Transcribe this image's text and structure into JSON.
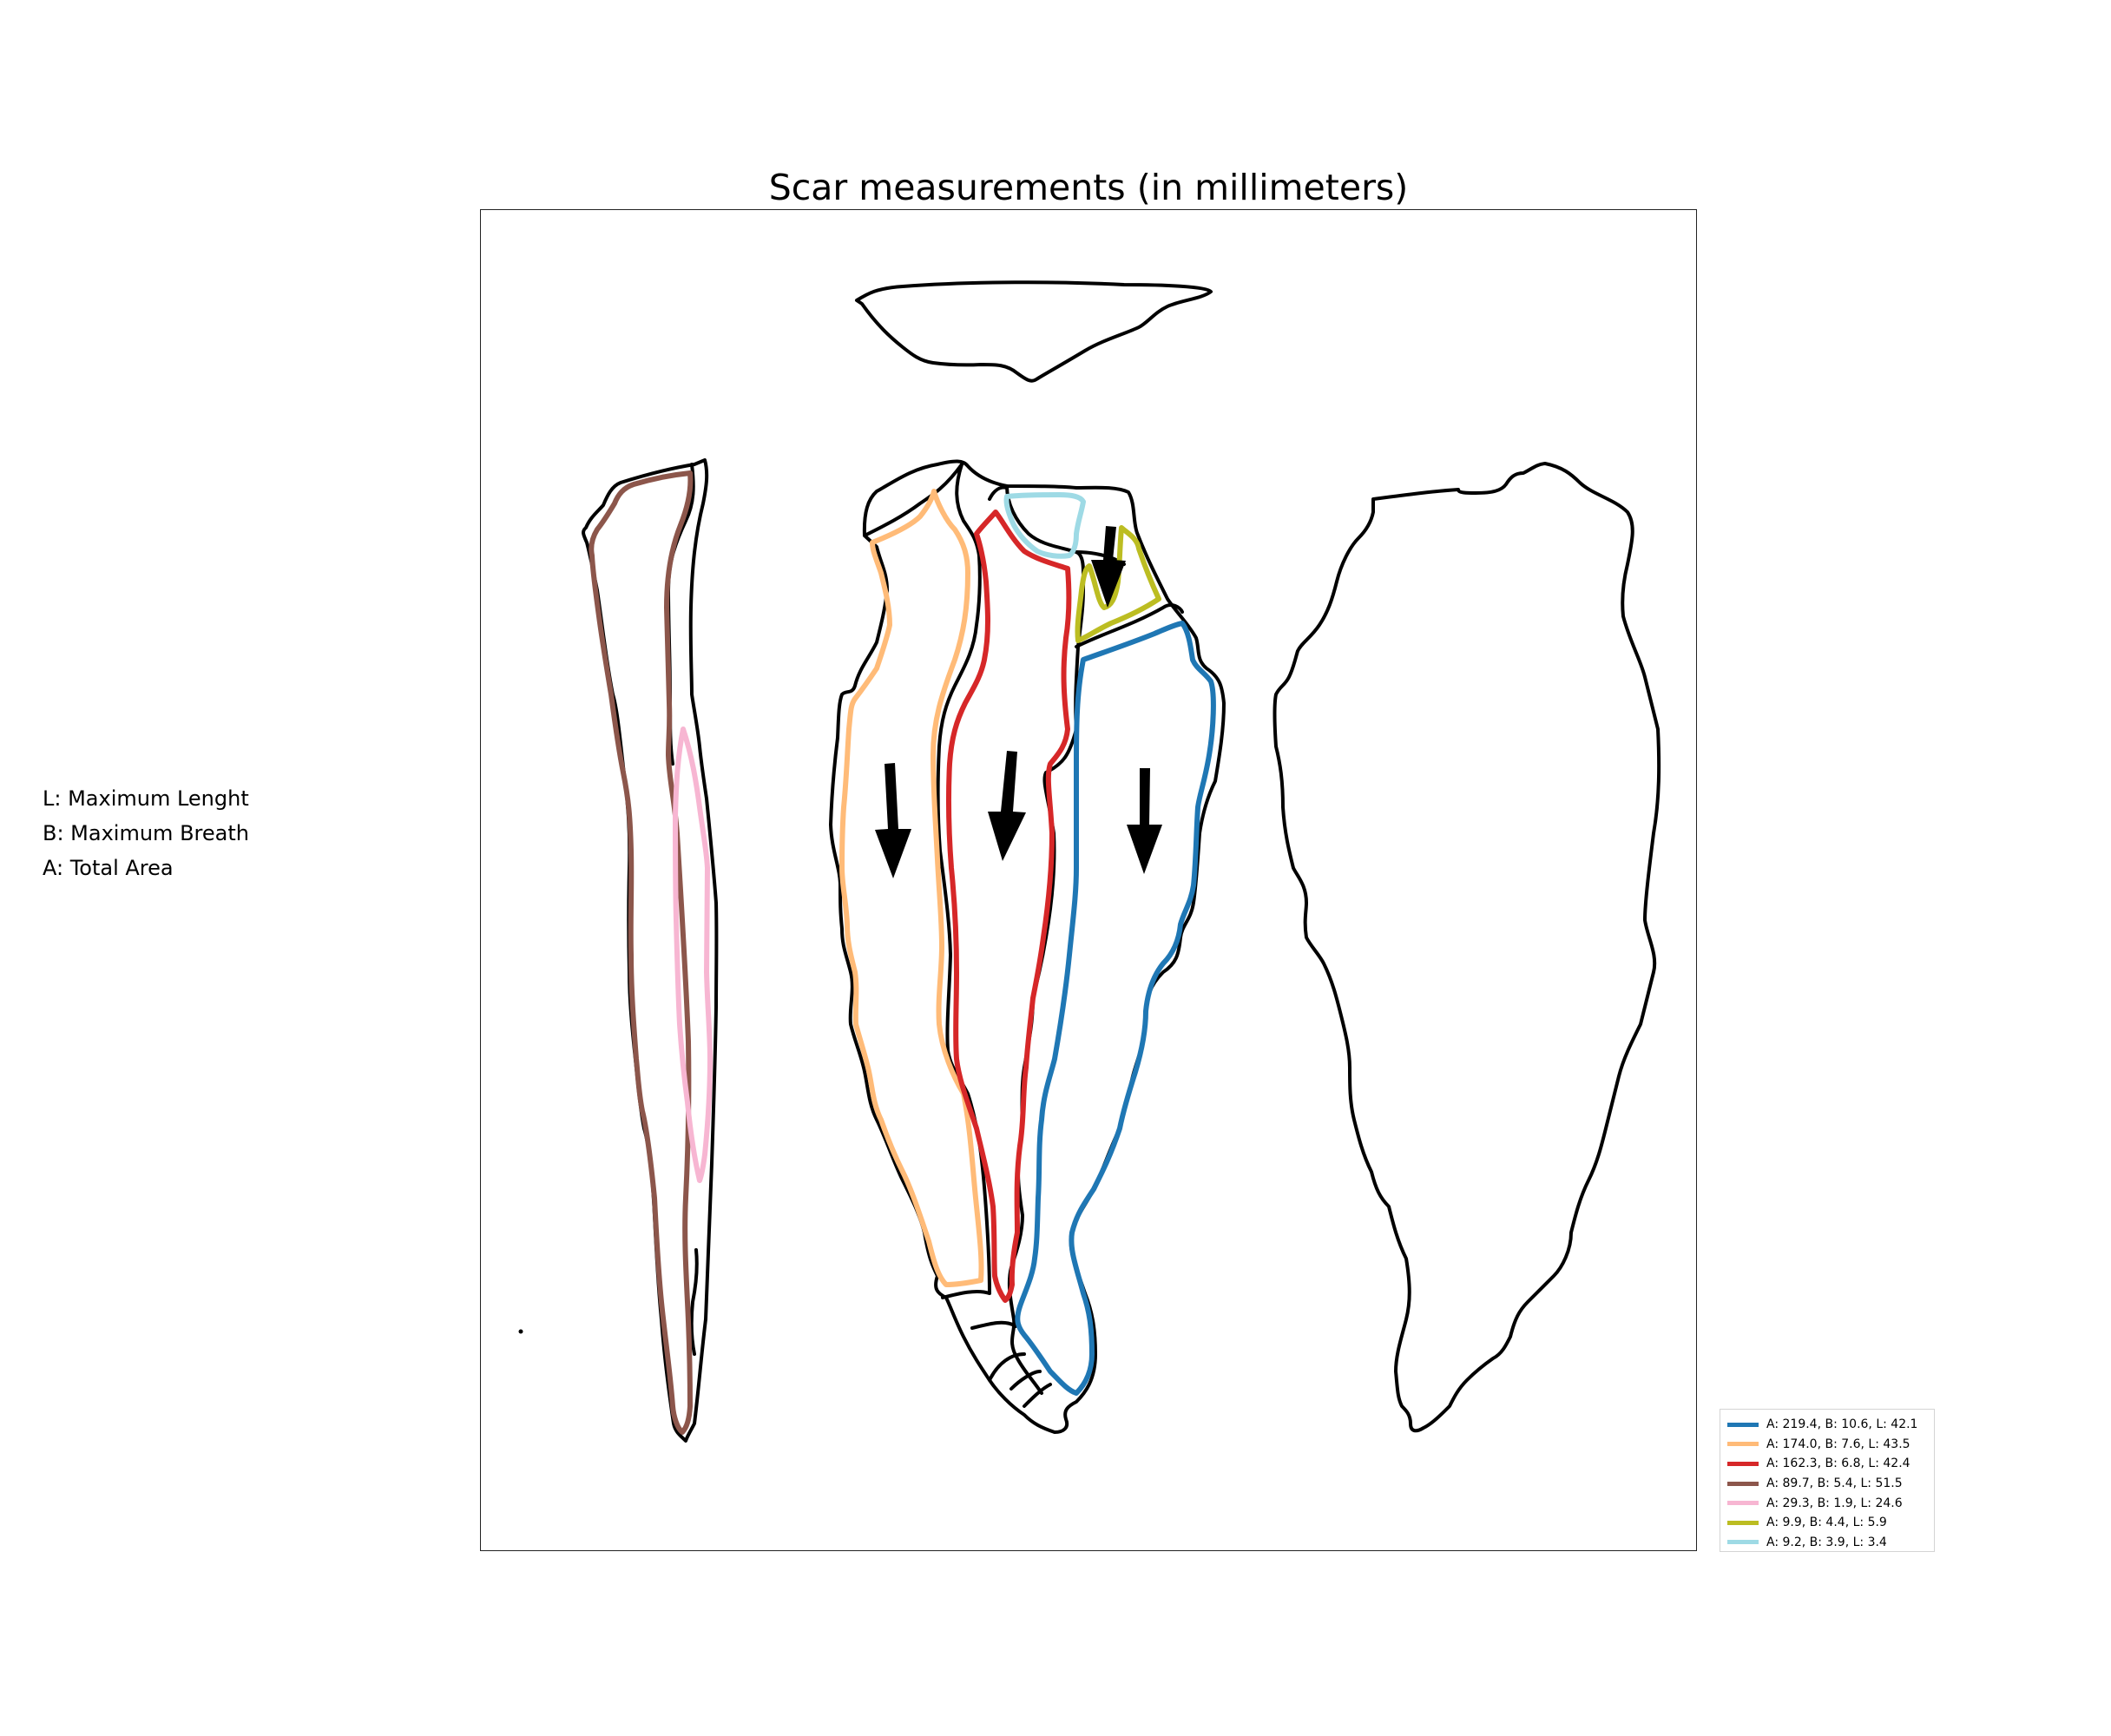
{
  "title": "Scar measurements (in millimeters)",
  "notes": [
    "L: Maximum Lenght",
    "B: Maximum Breath",
    "A: Total Area"
  ],
  "legend": [
    {
      "label": "A: 219.4, B: 10.6, L: 42.1",
      "color": "#1f77b4"
    },
    {
      "label": "A: 174.0, B: 7.6, L: 43.5",
      "color": "#ffbb78"
    },
    {
      "label": "A: 162.3, B: 6.8, L: 42.4",
      "color": "#d62728"
    },
    {
      "label": "A: 89.7, B: 5.4, L: 51.5",
      "color": "#8c564b"
    },
    {
      "label": "A: 29.3, B: 1.9, L: 24.6",
      "color": "#f7b6d2"
    },
    {
      "label": "A: 9.9, B: 4.4, L: 5.9",
      "color": "#bcbd22"
    },
    {
      "label": "A: 9.2, B: 3.9, L: 3.4",
      "color": "#9edae5"
    }
  ],
  "colors": {
    "outline": "#000000",
    "blue_scar": "#1f77b4",
    "orange_scar": "#ffbb78",
    "red_scar": "#d62728",
    "brown_scar": "#8c564b",
    "pink_scar": "#f7b6d2",
    "olive_scar": "#bcbd22",
    "lightblue_scar": "#9edae5"
  },
  "icons": [
    "flake-direction-arrow"
  ]
}
